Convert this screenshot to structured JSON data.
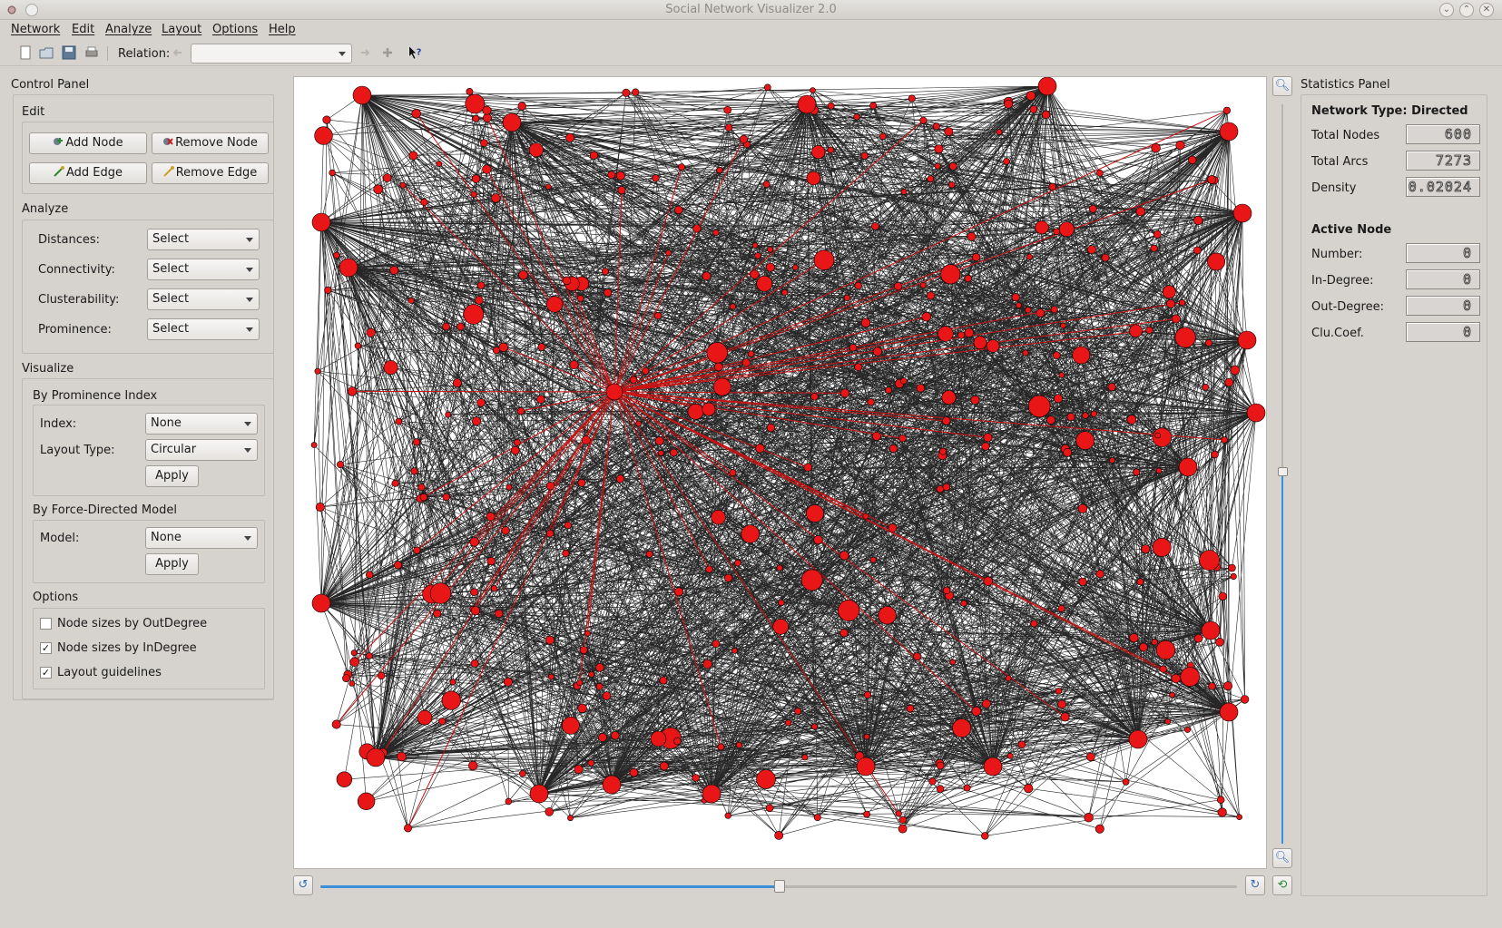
{
  "window": {
    "title": "Social Network Visualizer 2.0"
  },
  "menu": [
    "Network",
    "Edit",
    "Analyze",
    "Layout",
    "Options",
    "Help"
  ],
  "toolbar": {
    "relation_label": "Relation:",
    "relation_value": ""
  },
  "control_panel": {
    "title": "Control Panel",
    "edit": {
      "label": "Edit",
      "add_node": "Add Node",
      "remove_node": "Remove Node",
      "add_edge": "Add Edge",
      "remove_edge": "Remove Edge"
    },
    "analyze": {
      "label": "Analyze",
      "distances_label": "Distances:",
      "distances_value": "Select",
      "connectivity_label": "Connectivity:",
      "connectivity_value": "Select",
      "clusterability_label": "Clusterability:",
      "clusterability_value": "Select",
      "prominence_label": "Prominence:",
      "prominence_value": "Select"
    },
    "visualize": {
      "label": "Visualize",
      "prominence_group": "By Prominence Index",
      "index_label": "Index:",
      "index_value": "None",
      "layout_type_label": "Layout Type:",
      "layout_type_value": "Circular",
      "apply1": "Apply",
      "force_group": "By Force-Directed Model",
      "model_label": "Model:",
      "model_value": "None",
      "apply2": "Apply"
    },
    "options": {
      "label": "Options",
      "opt1": "Node sizes by OutDegree",
      "opt1_checked": false,
      "opt2": "Node sizes by InDegree",
      "opt2_checked": true,
      "opt3": "Layout guidelines",
      "opt3_checked": true
    }
  },
  "statistics_panel": {
    "title": "Statistics Panel",
    "network_type": "Network Type: Directed",
    "total_nodes_label": "Total Nodes",
    "total_nodes": "600",
    "total_arcs_label": "Total Arcs",
    "total_arcs": "7273",
    "density_label": "Density",
    "density": "0.02024",
    "active_node": "Active Node",
    "number_label": "Number:",
    "number": "0",
    "indegree_label": "In-Degree:",
    "indegree": "0",
    "outdegree_label": "Out-Degree:",
    "outdegree": "0",
    "clucoef_label": "Clu.Coef.",
    "clucoef": "0"
  },
  "colors": {
    "node": "#e81616",
    "edge": "#000000",
    "highlight_edge": "#cc1111",
    "accent": "#3b8ed8"
  },
  "zoom": {
    "level_fraction": 0.5
  },
  "rotation": {
    "level_fraction": 0.5
  }
}
